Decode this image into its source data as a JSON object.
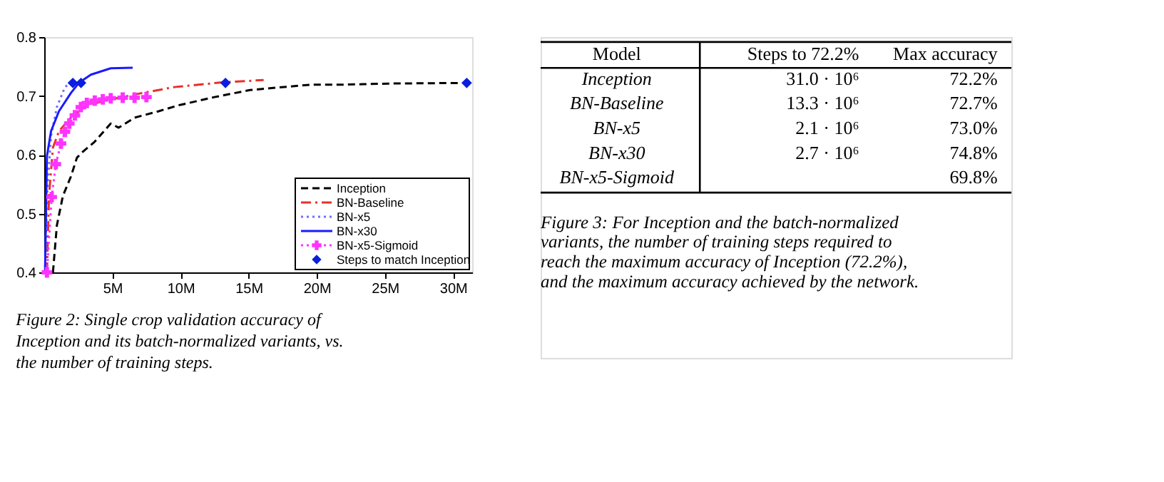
{
  "chart_data": [
    {
      "type": "line",
      "xlim": [
        0,
        31.4
      ],
      "ylim": [
        0.4,
        0.8
      ],
      "xticks": [
        {
          "value": 5,
          "label": "5M"
        },
        {
          "value": 10,
          "label": "10M"
        },
        {
          "value": 15,
          "label": "15M"
        },
        {
          "value": 20,
          "label": "20M"
        },
        {
          "value": 25,
          "label": "25M"
        },
        {
          "value": 30,
          "label": "30M"
        }
      ],
      "yticks": [
        0.4,
        0.5,
        0.6,
        0.7,
        0.8
      ],
      "grid": false,
      "legend": "bottom right",
      "annotations": [
        "Figure 2: Single crop validation accuracy of Inception and its batch-normalized variants, vs.  the number of training steps."
      ],
      "series": [
        {
          "name": "Inception",
          "color": "#000000",
          "line_style": "dashed",
          "marker": "none",
          "x": [
            0.64,
            0.93,
            1.37,
            1.96,
            2.4,
            2.83,
            3.7,
            4.88,
            5.46,
            6.63,
            8.4,
            9.85,
            12.5,
            15.1,
            19.5,
            21.8,
            25.3,
            30.6
          ],
          "values": [
            0.4,
            0.48,
            0.53,
            0.563,
            0.595,
            0.605,
            0.622,
            0.653,
            0.646,
            0.663,
            0.674,
            0.684,
            0.698,
            0.71,
            0.719,
            0.719,
            0.721,
            0.722
          ]
        },
        {
          "name": "BN-Baseline",
          "color": "#e8302a",
          "line_style": "dashdot",
          "marker": "none",
          "x": [
            0.2,
            0.35,
            0.64,
            1.08,
            1.96,
            3.13,
            4.88,
            7.2,
            9.55,
            13.06,
            16.1
          ],
          "values": [
            0.4,
            0.53,
            0.612,
            0.64,
            0.663,
            0.684,
            0.694,
            0.705,
            0.715,
            0.723,
            0.727
          ]
        },
        {
          "name": "BN-x5",
          "color": "#6f6fff",
          "line_style": "dotted",
          "marker": "none",
          "x": [
            0.06,
            0.2,
            0.5,
            0.93,
            1.52,
            1.96,
            2.1
          ],
          "values": [
            0.4,
            0.53,
            0.632,
            0.681,
            0.715,
            0.723,
            0.725
          ]
        },
        {
          "name": "BN-x30",
          "color": "#1a1aff",
          "line_style": "solid",
          "marker": "none",
          "x": [
            0.06,
            0.2,
            0.5,
            1.08,
            1.96,
            2.54,
            3.42,
            4.88,
            6.49
          ],
          "values": [
            0.4,
            0.598,
            0.64,
            0.674,
            0.705,
            0.722,
            0.736,
            0.747,
            0.748
          ]
        },
        {
          "name": "BN-x5-Sigmoid",
          "color": "#ff33ff",
          "line_style": "dotted",
          "marker": "cross",
          "x": [
            0.2,
            0.55,
            0.85,
            1.23,
            1.52,
            1.84,
            2.25,
            2.69,
            3.13,
            3.71,
            4.3,
            4.88,
            5.76,
            6.63,
            7.5
          ],
          "values": [
            0.4,
            0.528,
            0.584,
            0.619,
            0.639,
            0.653,
            0.667,
            0.681,
            0.688,
            0.692,
            0.694,
            0.696,
            0.697,
            0.697,
            0.698
          ]
        },
        {
          "name": "Steps to match Inception",
          "type": "scatter",
          "color": "#0a1ee0",
          "marker": "diamond",
          "x": [
            2.1,
            2.7,
            13.3,
            31.0
          ],
          "values": [
            0.722,
            0.722,
            0.722,
            0.722
          ]
        }
      ]
    },
    {
      "type": "other",
      "annotations": [
        "Model",
        "Steps to 72.2%",
        "Max accuracy",
        "Inception",
        "31.0 · 10⁶",
        "72.2%",
        "BN-Baseline",
        "13.3 · 10⁶",
        "72.7%",
        "BN-x5",
        "2.1 · 10⁶",
        "73.0%",
        "BN-x30",
        "2.7 · 10⁶",
        "74.8%",
        "BN-x5-Sigmoid",
        null,
        "69.8%",
        "Figure 3: For Inception and the batch-normalized variants, the number of training steps required to reach the maximum accuracy of Inception (72.2%), and the maximum accuracy achieved by the network."
      ]
    }
  ]
}
